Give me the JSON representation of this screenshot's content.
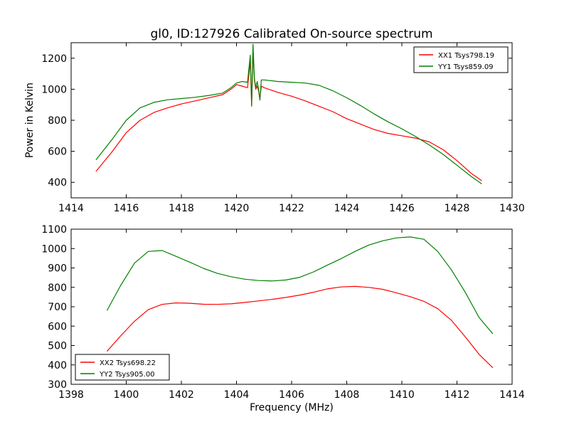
{
  "figure_title": "gl0, ID:127926 Calibrated On-source spectrum",
  "xlabel": "Frequency (MHz)",
  "chart_data": [
    {
      "type": "line",
      "title": "gl0, ID:127926 Calibrated On-source spectrum",
      "xlabel": "",
      "ylabel": "Power in Kelvin",
      "xlim": [
        1414,
        1430
      ],
      "ylim": [
        300,
        1300
      ],
      "xticks": [
        1414,
        1416,
        1418,
        1420,
        1422,
        1424,
        1426,
        1428,
        1430
      ],
      "yticks": [
        400,
        600,
        800,
        1000,
        1200
      ],
      "grid": false,
      "legend_position": "top-right",
      "series": [
        {
          "name": "XX1 Tsys798.19",
          "color": "#ff0000",
          "x": [
            1414.9,
            1415.5,
            1416.0,
            1416.5,
            1417.0,
            1417.5,
            1418.0,
            1418.5,
            1419.0,
            1419.5,
            1419.8,
            1420.0,
            1420.2,
            1420.4,
            1420.5,
            1420.55,
            1420.6,
            1420.65,
            1420.7,
            1420.75,
            1420.8,
            1420.85,
            1420.9,
            1421.0,
            1421.5,
            1422.0,
            1422.5,
            1423.0,
            1423.5,
            1424.0,
            1424.5,
            1425.0,
            1425.5,
            1426.0,
            1426.5,
            1427.0,
            1427.5,
            1428.0,
            1428.5,
            1428.9
          ],
          "y": [
            470,
            600,
            720,
            800,
            850,
            880,
            905,
            925,
            945,
            965,
            1000,
            1030,
            1020,
            1010,
            1180,
            890,
            1240,
            1060,
            1000,
            1020,
            990,
            940,
            1020,
            1010,
            980,
            955,
            925,
            890,
            855,
            810,
            775,
            740,
            715,
            700,
            685,
            660,
            610,
            540,
            460,
            410
          ]
        },
        {
          "name": "YY1 Tsys859.09",
          "color": "#008000",
          "x": [
            1414.9,
            1415.5,
            1416.0,
            1416.5,
            1417.0,
            1417.5,
            1418.0,
            1418.5,
            1419.0,
            1419.5,
            1419.8,
            1420.0,
            1420.2,
            1420.4,
            1420.5,
            1420.55,
            1420.6,
            1420.65,
            1420.7,
            1420.75,
            1420.8,
            1420.85,
            1420.9,
            1421.0,
            1421.5,
            1422.0,
            1422.5,
            1423.0,
            1423.5,
            1424.0,
            1424.5,
            1425.0,
            1425.5,
            1426.0,
            1426.5,
            1427.0,
            1427.5,
            1428.0,
            1428.5,
            1428.9
          ],
          "y": [
            545,
            680,
            800,
            880,
            915,
            932,
            940,
            948,
            960,
            975,
            1010,
            1040,
            1050,
            1045,
            1220,
            900,
            1290,
            1070,
            1010,
            1050,
            1000,
            930,
            1060,
            1060,
            1050,
            1045,
            1040,
            1025,
            990,
            945,
            895,
            840,
            790,
            745,
            695,
            640,
            580,
            510,
            440,
            390
          ]
        }
      ]
    },
    {
      "type": "line",
      "title": "",
      "xlabel": "Frequency (MHz)",
      "ylabel": "",
      "xlim": [
        1398,
        1414
      ],
      "ylim": [
        300,
        1100
      ],
      "xticks": [
        1398,
        1400,
        1402,
        1404,
        1406,
        1408,
        1410,
        1412,
        1414
      ],
      "yticks": [
        300,
        400,
        500,
        600,
        700,
        800,
        900,
        1000,
        1100
      ],
      "grid": false,
      "legend_position": "bottom-left",
      "series": [
        {
          "name": "XX2 Tsys698.22",
          "color": "#ff0000",
          "x": [
            1399.3,
            1399.8,
            1400.3,
            1400.8,
            1401.3,
            1401.8,
            1402.3,
            1402.8,
            1403.3,
            1403.8,
            1404.3,
            1404.8,
            1405.3,
            1405.8,
            1406.3,
            1406.8,
            1407.3,
            1407.8,
            1408.3,
            1408.8,
            1409.3,
            1409.8,
            1410.3,
            1410.8,
            1411.3,
            1411.8,
            1412.3,
            1412.8,
            1413.3
          ],
          "y": [
            470,
            550,
            625,
            685,
            712,
            720,
            718,
            713,
            712,
            715,
            722,
            730,
            738,
            748,
            760,
            775,
            792,
            802,
            805,
            800,
            790,
            772,
            752,
            728,
            690,
            630,
            545,
            455,
            385
          ]
        },
        {
          "name": "YY2 Tsys905.00",
          "color": "#008000",
          "x": [
            1399.3,
            1399.8,
            1400.3,
            1400.8,
            1401.3,
            1401.8,
            1402.3,
            1402.8,
            1403.3,
            1403.8,
            1404.3,
            1404.8,
            1405.3,
            1405.8,
            1406.3,
            1406.8,
            1407.3,
            1407.8,
            1408.3,
            1408.8,
            1409.3,
            1409.8,
            1410.3,
            1410.8,
            1411.3,
            1411.8,
            1412.3,
            1412.8,
            1413.3
          ],
          "y": [
            680,
            810,
            925,
            985,
            990,
            960,
            930,
            898,
            872,
            855,
            842,
            835,
            833,
            838,
            852,
            880,
            915,
            948,
            985,
            1018,
            1040,
            1055,
            1060,
            1048,
            985,
            890,
            775,
            645,
            560
          ]
        }
      ]
    }
  ]
}
